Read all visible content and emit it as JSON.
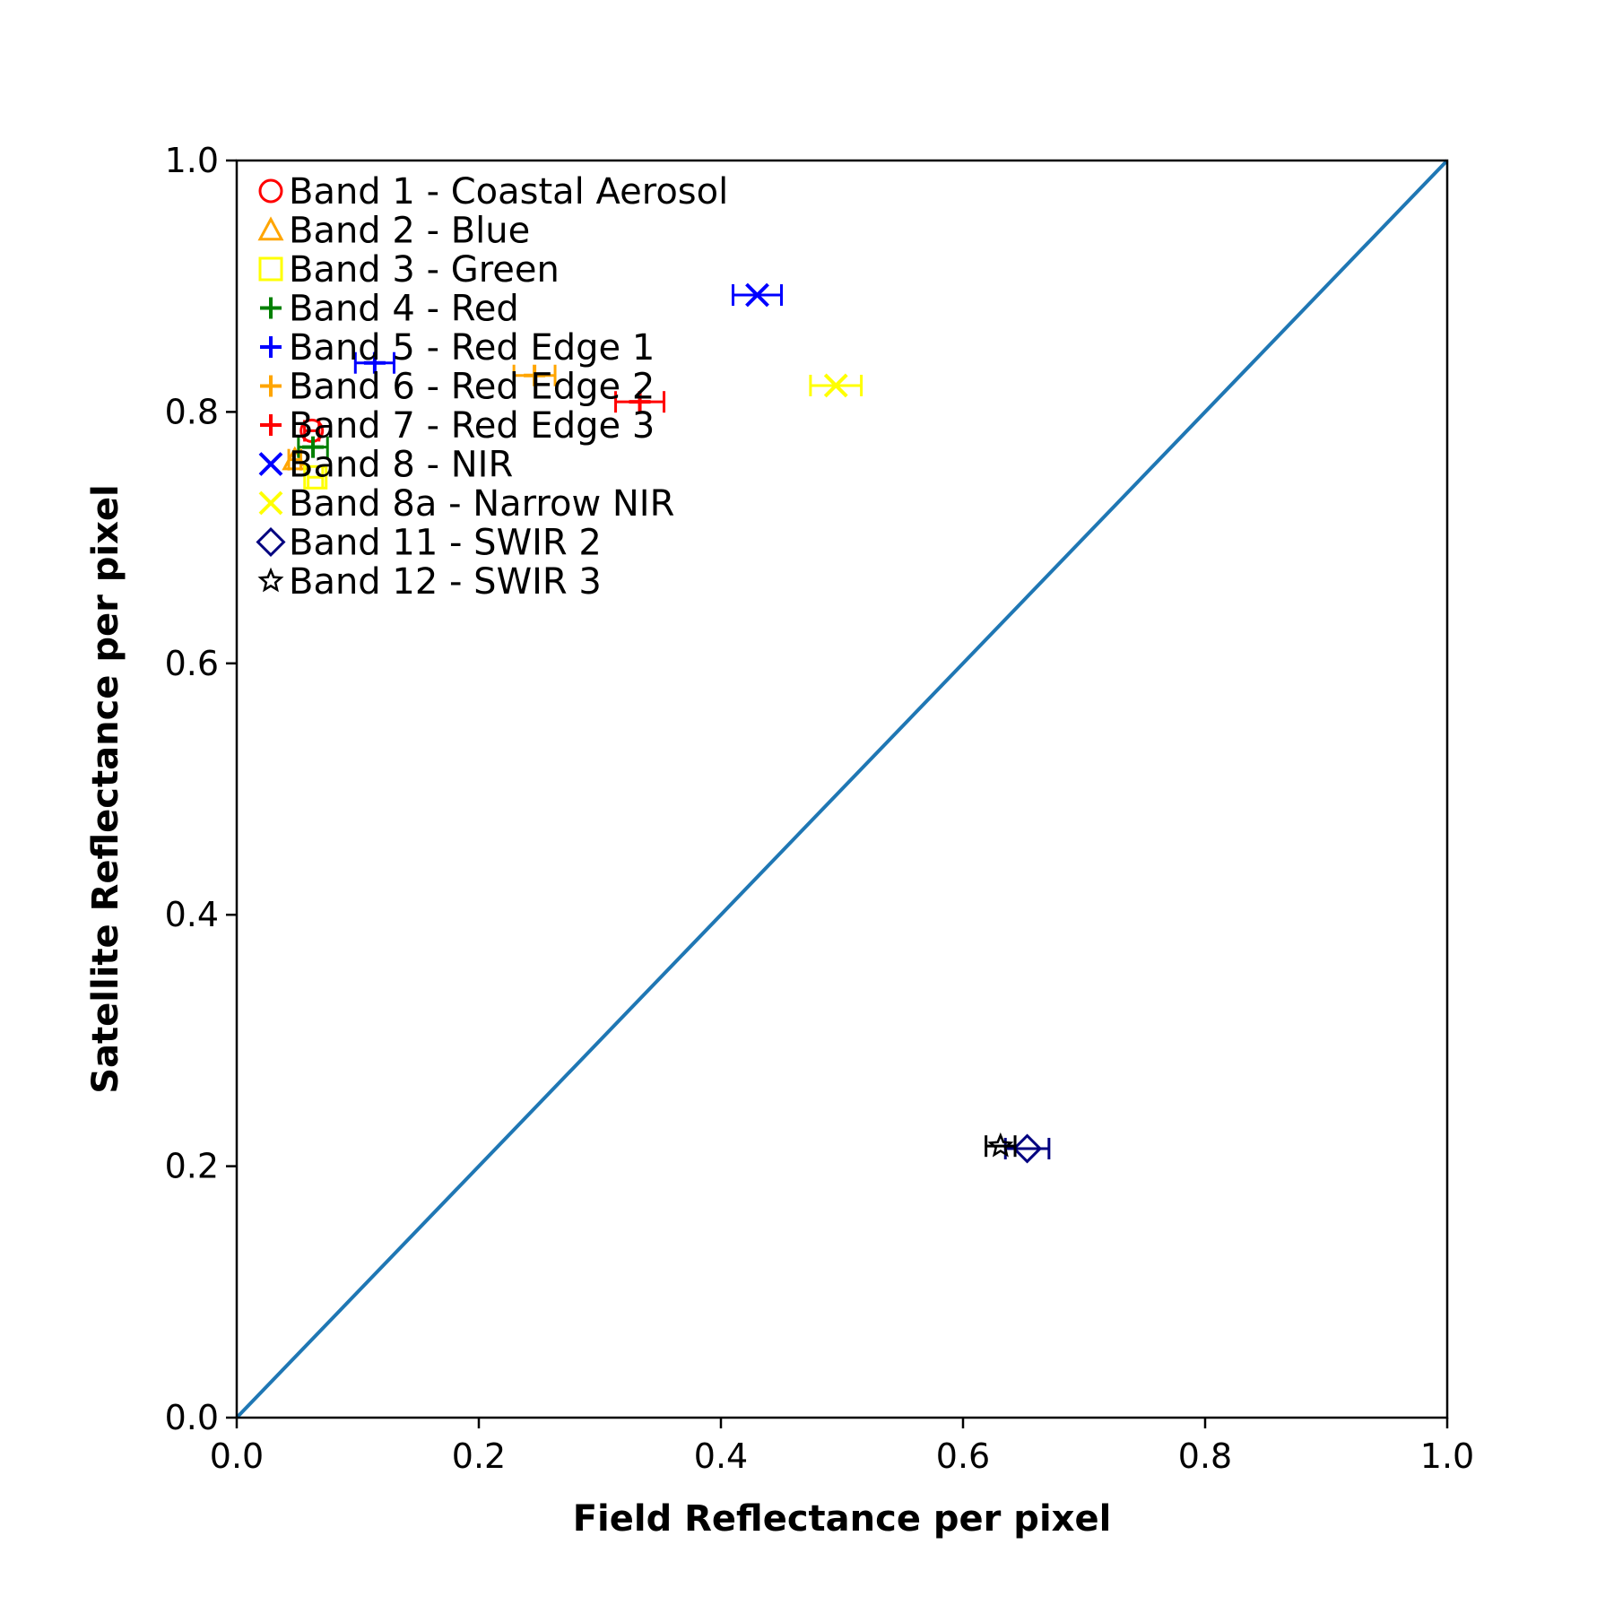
{
  "chart_data": {
    "type": "scatter",
    "title": "",
    "xlabel": "Field Reflectance per pixel",
    "ylabel": "Satellite Reflectance per pixel",
    "xlim": [
      0.0,
      1.0
    ],
    "ylim": [
      0.0,
      1.0
    ],
    "xticks": [
      "0.0",
      "0.2",
      "0.4",
      "0.6",
      "0.8",
      "1.0"
    ],
    "yticks": [
      "0.0",
      "0.2",
      "0.4",
      "0.6",
      "0.8",
      "1.0"
    ],
    "grid": false,
    "legend_position": "top-left",
    "reference_line": {
      "from": [
        0.0,
        0.0
      ],
      "to": [
        1.0,
        1.0
      ],
      "color": "#1f77b4"
    },
    "series": [
      {
        "name": "Band 1 - Coastal Aerosol",
        "marker": "circle",
        "color": "#ff0000",
        "x": 0.062,
        "y": 0.785,
        "xerr": 0.006
      },
      {
        "name": "Band 2 - Blue",
        "marker": "triangle",
        "color": "#ffa500",
        "x": 0.048,
        "y": 0.762,
        "xerr": 0.005
      },
      {
        "name": "Band 3 - Green",
        "marker": "square",
        "color": "#ffff00",
        "x": 0.065,
        "y": 0.748,
        "xerr": 0.006
      },
      {
        "name": "Band 4 - Red",
        "marker": "plus",
        "color": "#008000",
        "x": 0.063,
        "y": 0.772,
        "xerr": 0.012
      },
      {
        "name": "Band 5 - Red Edge 1",
        "marker": "plus",
        "color": "#0000ff",
        "x": 0.114,
        "y": 0.839,
        "xerr": 0.016
      },
      {
        "name": "Band 6 - Red Edge 2",
        "marker": "plus",
        "color": "#ffa500",
        "x": 0.246,
        "y": 0.829,
        "xerr": 0.017
      },
      {
        "name": "Band 7 - Red Edge 3",
        "marker": "plus",
        "color": "#ff0000",
        "x": 0.333,
        "y": 0.808,
        "xerr": 0.02
      },
      {
        "name": "Band 8 - NIR",
        "marker": "x",
        "color": "#0000ff",
        "x": 0.43,
        "y": 0.893,
        "xerr": 0.02
      },
      {
        "name": "Band 8a - Narrow NIR",
        "marker": "x",
        "color": "#ffff00",
        "x": 0.495,
        "y": 0.821,
        "xerr": 0.021
      },
      {
        "name": "Band 11 - SWIR 2",
        "marker": "diamond",
        "color": "#000080",
        "x": 0.653,
        "y": 0.214,
        "xerr": 0.018
      },
      {
        "name": "Band 12 - SWIR 3",
        "marker": "star",
        "color": "#000000",
        "x": 0.631,
        "y": 0.216,
        "xerr": 0.012
      }
    ]
  }
}
